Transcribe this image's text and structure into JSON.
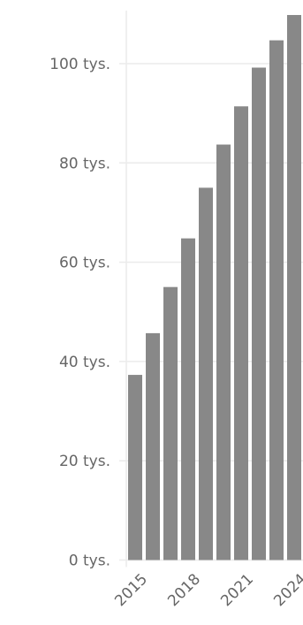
{
  "chart_data": {
    "type": "bar",
    "title": "",
    "xlabel": "",
    "ylabel": "",
    "categories": [
      "2015",
      "2016",
      "2017",
      "2018",
      "2019",
      "2020",
      "2021",
      "2022",
      "2023",
      "2024"
    ],
    "x_tick_labels": [
      "2015",
      "2018",
      "2021",
      "2024"
    ],
    "values": [
      37.3,
      45.7,
      55.0,
      64.8,
      75.0,
      83.7,
      91.4,
      99.2,
      104.7,
      109.8
    ],
    "ylim": [
      0,
      110
    ],
    "y_ticks": [
      0,
      20,
      40,
      60,
      80,
      100
    ],
    "y_tick_labels": [
      "0 tys.",
      "20 tys.",
      "40 tys.",
      "60 tys.",
      "80 tys.",
      "100 tys."
    ],
    "bar_color": "#888888",
    "grid": true
  }
}
